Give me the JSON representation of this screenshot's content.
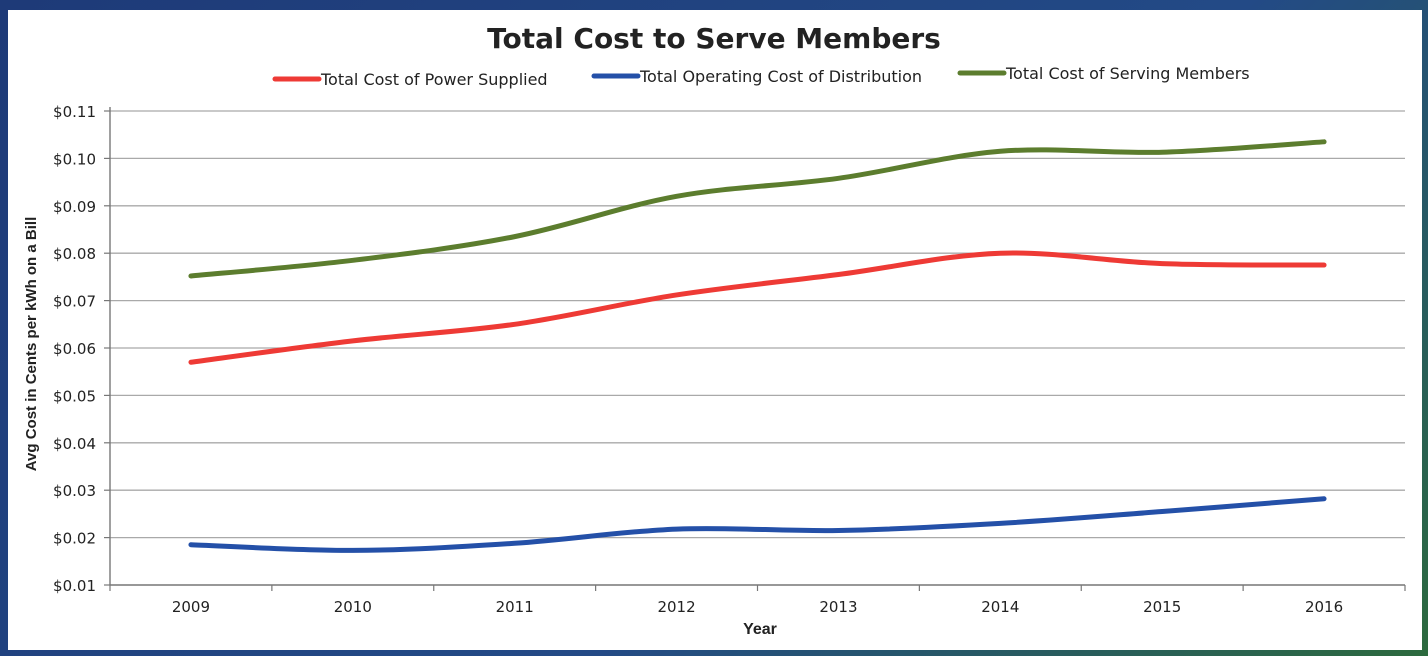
{
  "chart_data": {
    "type": "line",
    "title": "Total Cost to Serve Members",
    "xlabel": "Year",
    "ylabel": "Avg Cost in Cents per kWh on a Bill",
    "categories": [
      "2009",
      "2010",
      "2011",
      "2012",
      "2013",
      "2014",
      "2015",
      "2016"
    ],
    "y_tick_labels": [
      "$0.01",
      "$0.02",
      "$0.03",
      "$0.04",
      "$0.05",
      "$0.06",
      "$0.07",
      "$0.08",
      "$0.09",
      "$0.10",
      "$0.11"
    ],
    "ylim": [
      0.01,
      0.11
    ],
    "grid": true,
    "legend_position": "top",
    "series": [
      {
        "name": "Total Cost of Power Supplied",
        "color": "#ee3a35",
        "values": [
          0.057,
          0.0615,
          0.065,
          0.0712,
          0.0755,
          0.08,
          0.0778,
          0.0775
        ]
      },
      {
        "name": "Total Operating Cost of Distribution",
        "color": "#2450a8",
        "values": [
          0.0185,
          0.0173,
          0.0188,
          0.0218,
          0.0215,
          0.023,
          0.0255,
          0.0282
        ]
      },
      {
        "name": "Total Cost of Serving Members",
        "color": "#5c7d2e",
        "values": [
          0.0752,
          0.0785,
          0.0835,
          0.092,
          0.0958,
          0.1015,
          0.1013,
          0.1035
        ]
      }
    ]
  }
}
